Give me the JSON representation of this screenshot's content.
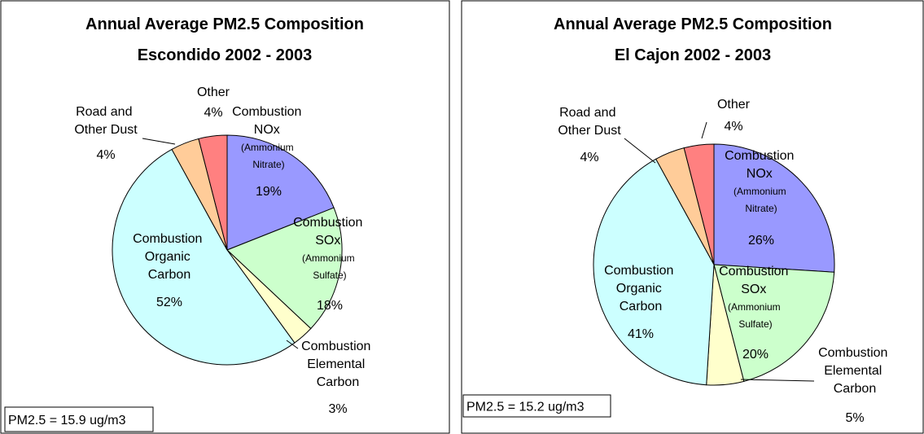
{
  "chart_data": [
    {
      "type": "pie",
      "title": "Annual Average PM2.5 Composition",
      "subtitle": "Escondido 2002 - 2003",
      "categories": [
        "Combustion\nNOx\n(Ammonium\nNitrate)",
        "Combustion\nSOx\n(Ammonium\nSulfate)",
        "Combustion\nElemental\nCarbon",
        "Combustion\nOrganic\nCarbon",
        "Road and\nOther Dust",
        "Other"
      ],
      "values": [
        19,
        18,
        3,
        52,
        4,
        4
      ],
      "value_labels": [
        "19%",
        "18%",
        "3%",
        "52%",
        "4%",
        "4%"
      ],
      "colors": [
        "#9999ff",
        "#ccffcc",
        "#ffffcc",
        "#ccffff",
        "#ffcc99",
        "#ff8080"
      ],
      "annotation": "PM2.5 = 15.9 ug/m3"
    },
    {
      "type": "pie",
      "title": "Annual Average PM2.5 Composition",
      "subtitle": "El Cajon 2002 - 2003",
      "categories": [
        "Combustion\nNOx\n(Ammonium\nNitrate)",
        "Combustion\nSOx\n(Ammonium\nSulfate)",
        "Combustion\nElemental\nCarbon",
        "Combustion\nOrganic\nCarbon",
        "Road and\nOther Dust",
        "Other"
      ],
      "values": [
        26,
        20,
        5,
        41,
        4,
        4
      ],
      "value_labels": [
        "26%",
        "20%",
        "5%",
        "41%",
        "4%",
        "4%"
      ],
      "colors": [
        "#9999ff",
        "#ccffcc",
        "#ffffcc",
        "#ccffff",
        "#ffcc99",
        "#ff8080"
      ],
      "annotation": "PM2.5 = 15.2 ug/m3"
    }
  ]
}
